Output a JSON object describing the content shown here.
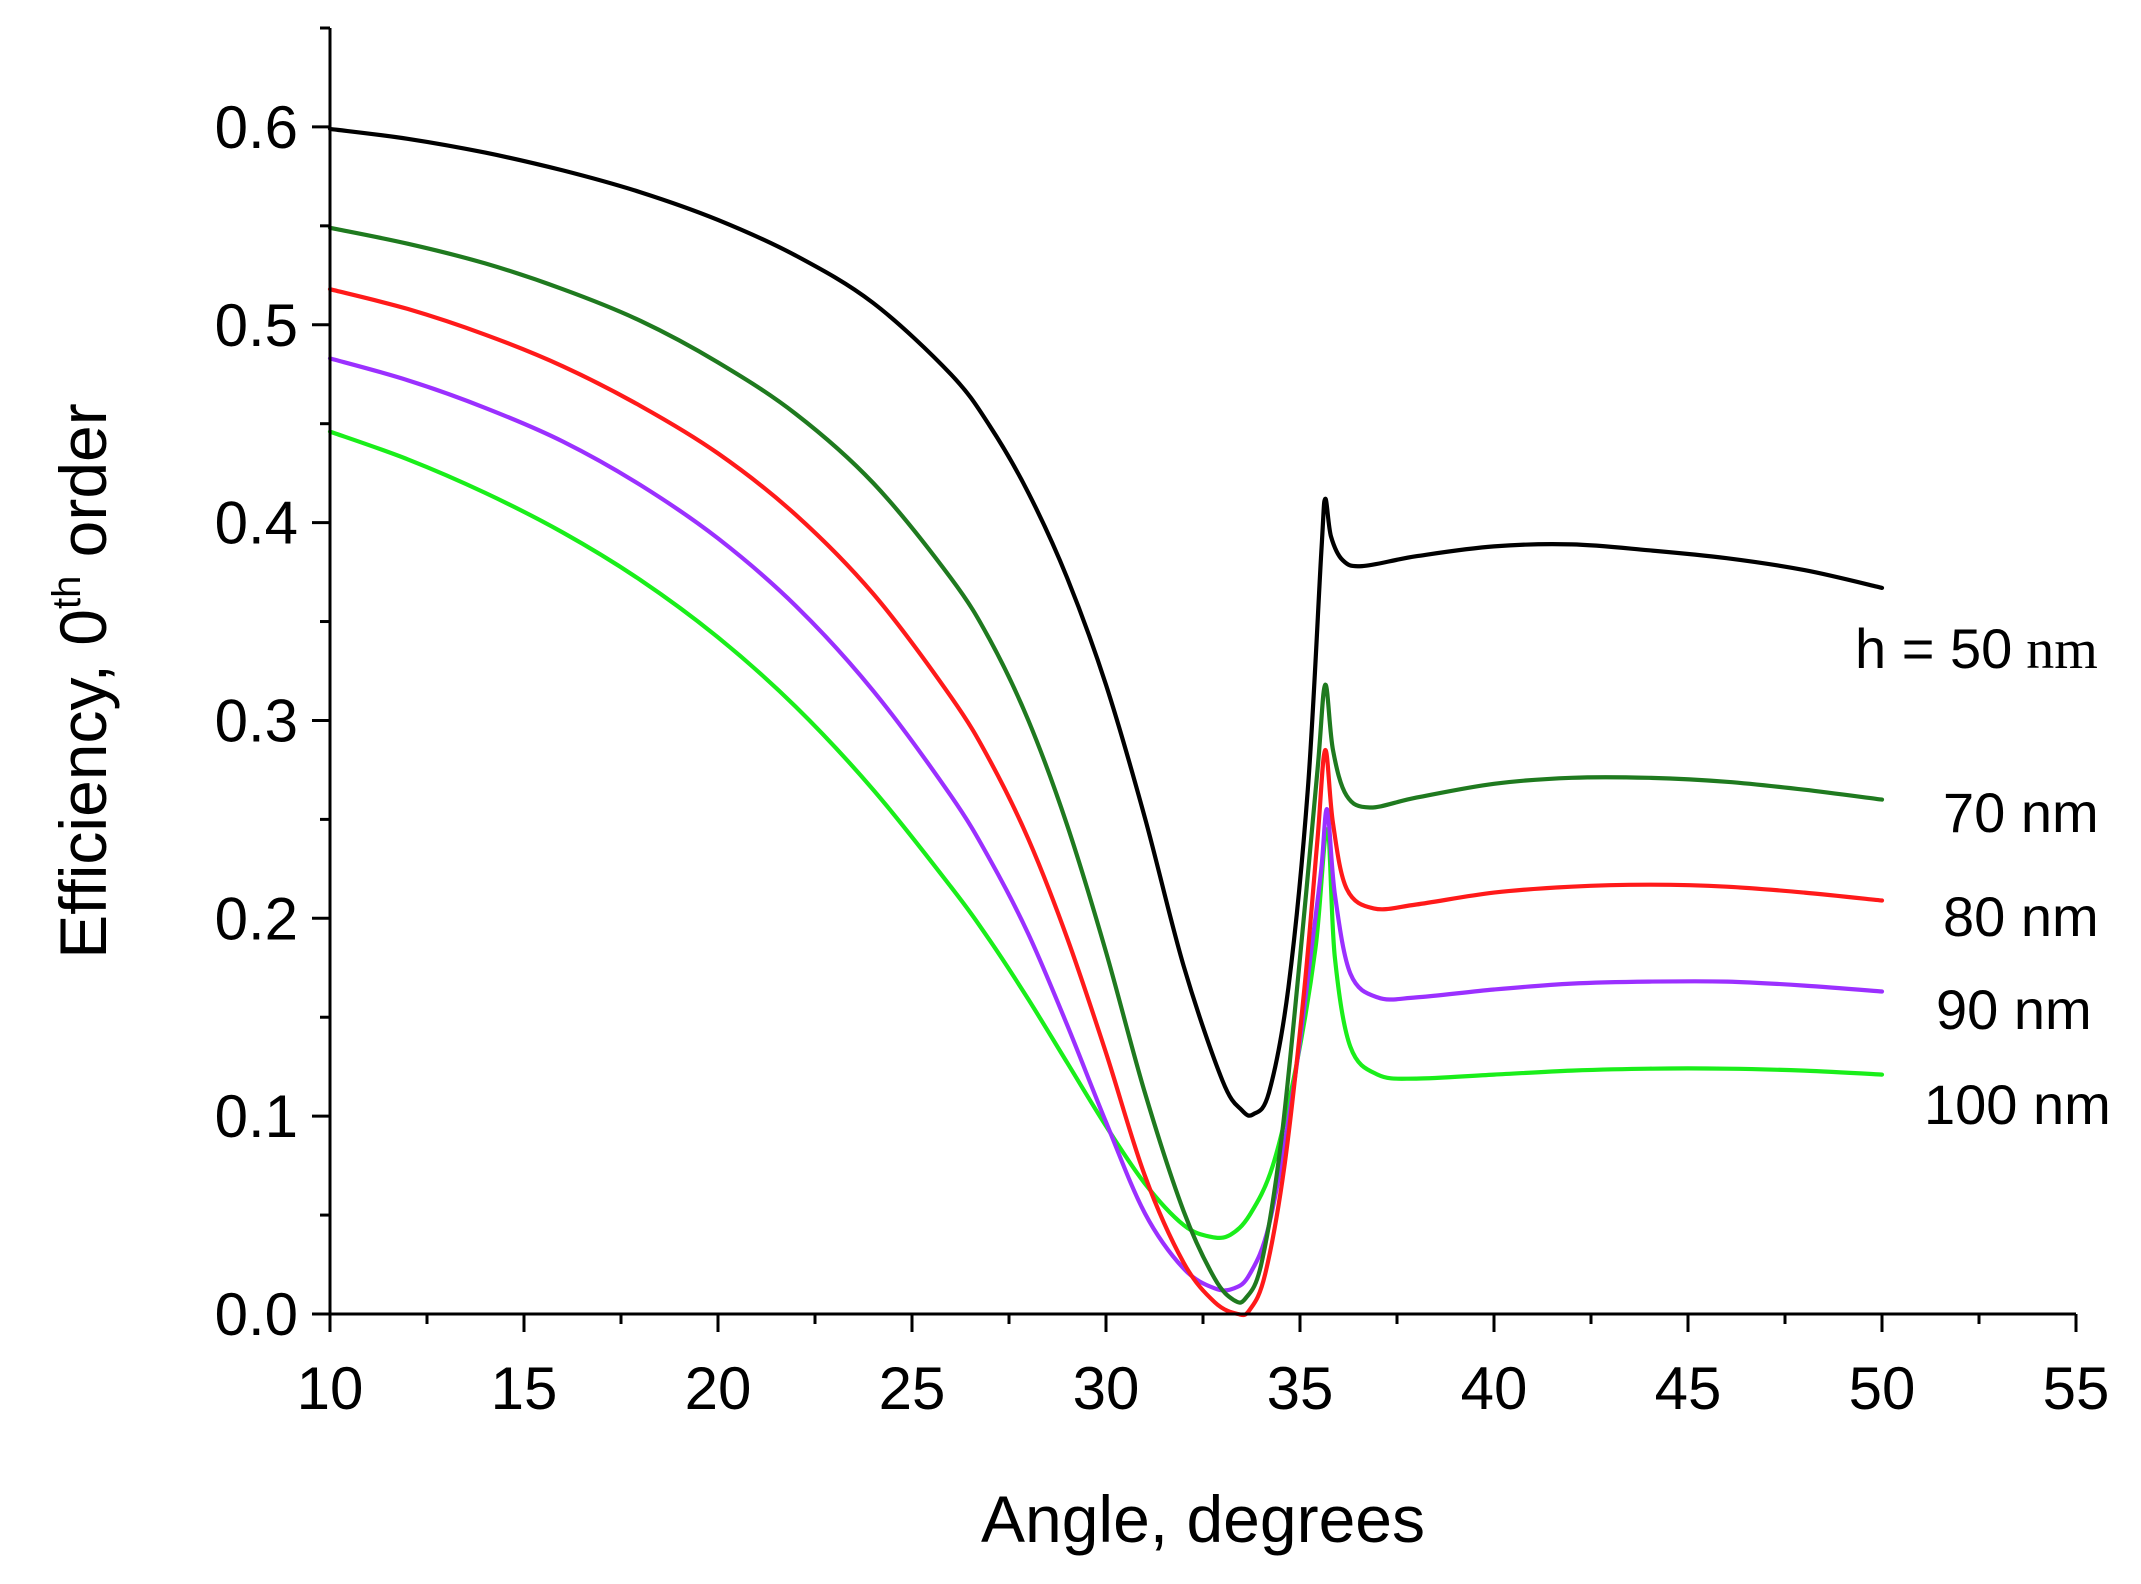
{
  "chart_data": {
    "type": "line",
    "title": "",
    "xlabel": "Angle, degrees",
    "ylabel": {
      "prefix": "Efficiency, 0",
      "superscript": "th",
      "suffix": " order"
    },
    "xlim": [
      10,
      55
    ],
    "ylim": [
      0.0,
      0.65
    ],
    "xticks": [
      10,
      15,
      20,
      25,
      30,
      35,
      40,
      45,
      50,
      55
    ],
    "xtick_labels": [
      "10",
      "15",
      "20",
      "25",
      "30",
      "35",
      "40",
      "45",
      "50",
      "55"
    ],
    "yticks": [
      0.0,
      0.1,
      0.2,
      0.3,
      0.4,
      0.5,
      0.6
    ],
    "ytick_labels": [
      "0.0",
      "0.1",
      "0.2",
      "0.3",
      "0.4",
      "0.5",
      "0.6"
    ],
    "grid": false,
    "series": [
      {
        "name": "h = 50 nm",
        "label_main": "h = 50",
        "label_unit": "nm",
        "color": "#000000",
        "points": [
          [
            10,
            0.599
          ],
          [
            12,
            0.594
          ],
          [
            14,
            0.587
          ],
          [
            16,
            0.578
          ],
          [
            18,
            0.567
          ],
          [
            20,
            0.553
          ],
          [
            22,
            0.535
          ],
          [
            24,
            0.511
          ],
          [
            26,
            0.475
          ],
          [
            27,
            0.449
          ],
          [
            28,
            0.415
          ],
          [
            29,
            0.372
          ],
          [
            30,
            0.318
          ],
          [
            31,
            0.251
          ],
          [
            32,
            0.176
          ],
          [
            33,
            0.118
          ],
          [
            33.5,
            0.103
          ],
          [
            33.8,
            0.101
          ],
          [
            34.2,
            0.112
          ],
          [
            34.7,
            0.165
          ],
          [
            35.2,
            0.265
          ],
          [
            35.55,
            0.385
          ],
          [
            35.65,
            0.412
          ],
          [
            35.8,
            0.393
          ],
          [
            36.1,
            0.381
          ],
          [
            36.6,
            0.378
          ],
          [
            38,
            0.383
          ],
          [
            40,
            0.388
          ],
          [
            42,
            0.389
          ],
          [
            44,
            0.386
          ],
          [
            46,
            0.382
          ],
          [
            48,
            0.376
          ],
          [
            50,
            0.367
          ]
        ]
      },
      {
        "name": "70 nm",
        "label_main": "70 nm",
        "label_unit": "",
        "color": "#1f7a1f",
        "points": [
          [
            10,
            0.549
          ],
          [
            12,
            0.541
          ],
          [
            14,
            0.531
          ],
          [
            16,
            0.518
          ],
          [
            18,
            0.502
          ],
          [
            20,
            0.481
          ],
          [
            22,
            0.455
          ],
          [
            24,
            0.42
          ],
          [
            26,
            0.372
          ],
          [
            27,
            0.341
          ],
          [
            28,
            0.3
          ],
          [
            29,
            0.247
          ],
          [
            30,
            0.183
          ],
          [
            31,
            0.112
          ],
          [
            32,
            0.052
          ],
          [
            32.8,
            0.018
          ],
          [
            33.3,
            0.007
          ],
          [
            33.6,
            0.008
          ],
          [
            34,
            0.025
          ],
          [
            34.5,
            0.085
          ],
          [
            35,
            0.18
          ],
          [
            35.45,
            0.275
          ],
          [
            35.65,
            0.318
          ],
          [
            35.85,
            0.285
          ],
          [
            36.2,
            0.262
          ],
          [
            36.8,
            0.256
          ],
          [
            38,
            0.261
          ],
          [
            40,
            0.268
          ],
          [
            42,
            0.271
          ],
          [
            44,
            0.271
          ],
          [
            46,
            0.269
          ],
          [
            48,
            0.265
          ],
          [
            50,
            0.26
          ]
        ]
      },
      {
        "name": "80 nm",
        "label_main": "80 nm",
        "label_unit": "",
        "color": "#ff1a1a",
        "points": [
          [
            10,
            0.518
          ],
          [
            12,
            0.508
          ],
          [
            14,
            0.495
          ],
          [
            16,
            0.479
          ],
          [
            18,
            0.459
          ],
          [
            20,
            0.435
          ],
          [
            22,
            0.404
          ],
          [
            24,
            0.364
          ],
          [
            26,
            0.312
          ],
          [
            27,
            0.28
          ],
          [
            28,
            0.24
          ],
          [
            29,
            0.19
          ],
          [
            30,
            0.132
          ],
          [
            31,
            0.07
          ],
          [
            32,
            0.026
          ],
          [
            32.8,
            0.006
          ],
          [
            33.4,
            0.0
          ],
          [
            33.7,
            0.002
          ],
          [
            34.1,
            0.02
          ],
          [
            34.6,
            0.075
          ],
          [
            35.1,
            0.162
          ],
          [
            35.45,
            0.24
          ],
          [
            35.65,
            0.285
          ],
          [
            35.85,
            0.248
          ],
          [
            36.2,
            0.215
          ],
          [
            36.9,
            0.205
          ],
          [
            38,
            0.207
          ],
          [
            40,
            0.213
          ],
          [
            42,
            0.216
          ],
          [
            44,
            0.217
          ],
          [
            46,
            0.216
          ],
          [
            48,
            0.213
          ],
          [
            50,
            0.209
          ]
        ]
      },
      {
        "name": "90 nm",
        "label_main": "90 nm",
        "label_unit": "",
        "color": "#9b30ff",
        "points": [
          [
            10,
            0.483
          ],
          [
            12,
            0.472
          ],
          [
            14,
            0.458
          ],
          [
            16,
            0.441
          ],
          [
            18,
            0.419
          ],
          [
            20,
            0.392
          ],
          [
            22,
            0.358
          ],
          [
            24,
            0.315
          ],
          [
            26,
            0.262
          ],
          [
            27,
            0.23
          ],
          [
            28,
            0.192
          ],
          [
            29,
            0.146
          ],
          [
            30,
            0.097
          ],
          [
            31,
            0.051
          ],
          [
            32,
            0.023
          ],
          [
            32.8,
            0.013
          ],
          [
            33.3,
            0.013
          ],
          [
            33.7,
            0.02
          ],
          [
            34.2,
            0.045
          ],
          [
            34.8,
            0.11
          ],
          [
            35.3,
            0.185
          ],
          [
            35.55,
            0.225
          ],
          [
            35.7,
            0.255
          ],
          [
            35.9,
            0.212
          ],
          [
            36.3,
            0.172
          ],
          [
            37,
            0.16
          ],
          [
            38,
            0.16
          ],
          [
            40,
            0.164
          ],
          [
            42,
            0.167
          ],
          [
            44,
            0.168
          ],
          [
            46,
            0.168
          ],
          [
            48,
            0.166
          ],
          [
            50,
            0.163
          ]
        ]
      },
      {
        "name": "100 nm",
        "label_main": "100 nm",
        "label_unit": "",
        "color": "#1aee1a",
        "points": [
          [
            10,
            0.446
          ],
          [
            12,
            0.432
          ],
          [
            14,
            0.415
          ],
          [
            16,
            0.395
          ],
          [
            18,
            0.371
          ],
          [
            20,
            0.342
          ],
          [
            22,
            0.307
          ],
          [
            24,
            0.265
          ],
          [
            26,
            0.216
          ],
          [
            27,
            0.189
          ],
          [
            28,
            0.159
          ],
          [
            29,
            0.127
          ],
          [
            30,
            0.095
          ],
          [
            31,
            0.066
          ],
          [
            32,
            0.045
          ],
          [
            32.7,
            0.039
          ],
          [
            33.2,
            0.04
          ],
          [
            33.7,
            0.05
          ],
          [
            34.3,
            0.075
          ],
          [
            34.9,
            0.125
          ],
          [
            35.4,
            0.185
          ],
          [
            35.7,
            0.245
          ],
          [
            35.9,
            0.18
          ],
          [
            36.3,
            0.135
          ],
          [
            37,
            0.121
          ],
          [
            38,
            0.119
          ],
          [
            40,
            0.121
          ],
          [
            42,
            0.123
          ],
          [
            44,
            0.124
          ],
          [
            46,
            0.124
          ],
          [
            48,
            0.123
          ],
          [
            50,
            0.121
          ]
        ]
      }
    ]
  }
}
